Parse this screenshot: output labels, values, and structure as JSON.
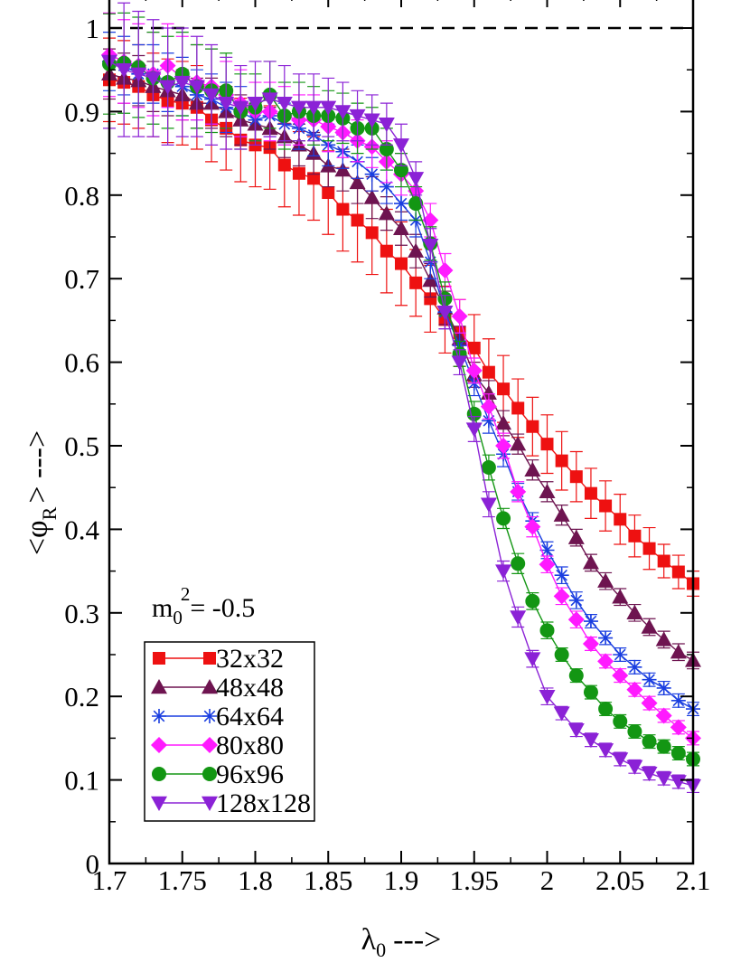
{
  "chart_data": {
    "type": "scatter",
    "xlabel": "λ0 --->",
    "xlabel_main": "λ",
    "xlabel_sub": "0",
    "xlabel_tail": "--->",
    "ylabel": "<φR> --->",
    "ylabel_open": "<φ",
    "ylabel_sub": "R",
    "ylabel_tail": "> --->",
    "xlim": [
      1.7,
      2.1
    ],
    "ylim": [
      0,
      1.0
    ],
    "xticks": [
      1.7,
      1.75,
      1.8,
      1.85,
      1.9,
      1.95,
      2.0,
      2.05,
      2.1
    ],
    "xtick_labels": [
      "1.7",
      "1.75",
      "1.8",
      "1.85",
      "1.9",
      "1.95",
      "2",
      "2.05",
      "2.1"
    ],
    "yticks": [
      0,
      0.1,
      0.2,
      0.3,
      0.4,
      0.5,
      0.6,
      0.7,
      0.8,
      0.9,
      1.0
    ],
    "ytick_labels": [
      "0",
      "0.1",
      "0.2",
      "0.3",
      "0.4",
      "0.5",
      "0.6",
      "0.7",
      "0.8",
      "0.9",
      "1"
    ],
    "reference_line": {
      "y": 1.0,
      "style": "dashed",
      "color": "#000000"
    },
    "annotation": {
      "main": "m",
      "sub": "0",
      "sup": "2",
      "rest": "= -0.5"
    },
    "legend_position": "bottom-left",
    "series": [
      {
        "name": "32x32",
        "color": "#ee1111",
        "marker": "square",
        "x": [
          1.7,
          1.71,
          1.72,
          1.73,
          1.74,
          1.75,
          1.76,
          1.77,
          1.78,
          1.79,
          1.8,
          1.81,
          1.82,
          1.83,
          1.84,
          1.85,
          1.86,
          1.87,
          1.88,
          1.89,
          1.9,
          1.91,
          1.92,
          1.93,
          1.94,
          1.95,
          1.96,
          1.97,
          1.98,
          1.99,
          2.0,
          2.01,
          2.02,
          2.03,
          2.04,
          2.05,
          2.06,
          2.07,
          2.08,
          2.09,
          2.1
        ],
        "y": [
          0.938,
          0.935,
          0.93,
          0.92,
          0.913,
          0.91,
          0.905,
          0.89,
          0.88,
          0.866,
          0.86,
          0.857,
          0.836,
          0.826,
          0.82,
          0.803,
          0.783,
          0.77,
          0.755,
          0.733,
          0.718,
          0.695,
          0.676,
          0.651,
          0.635,
          0.617,
          0.588,
          0.568,
          0.545,
          0.523,
          0.502,
          0.482,
          0.463,
          0.443,
          0.428,
          0.412,
          0.392,
          0.377,
          0.362,
          0.349,
          0.335
        ],
        "err": [
          0.05,
          0.05,
          0.05,
          0.05,
          0.05,
          0.05,
          0.05,
          0.05,
          0.05,
          0.05,
          0.05,
          0.05,
          0.05,
          0.05,
          0.05,
          0.05,
          0.05,
          0.05,
          0.05,
          0.05,
          0.05,
          0.04,
          0.04,
          0.04,
          0.04,
          0.04,
          0.04,
          0.04,
          0.035,
          0.035,
          0.035,
          0.035,
          0.03,
          0.03,
          0.03,
          0.03,
          0.025,
          0.025,
          0.02,
          0.02,
          0.015
        ]
      },
      {
        "name": "48x48",
        "color": "#6e1450",
        "marker": "triangle-up",
        "x": [
          1.7,
          1.71,
          1.72,
          1.73,
          1.74,
          1.75,
          1.76,
          1.77,
          1.78,
          1.79,
          1.8,
          1.81,
          1.82,
          1.83,
          1.84,
          1.85,
          1.86,
          1.87,
          1.88,
          1.89,
          1.9,
          1.91,
          1.92,
          1.93,
          1.94,
          1.95,
          1.96,
          1.97,
          1.98,
          1.99,
          2.0,
          2.01,
          2.02,
          2.03,
          2.04,
          2.05,
          2.06,
          2.07,
          2.08,
          2.09,
          2.1
        ],
        "y": [
          0.945,
          0.94,
          0.937,
          0.93,
          0.925,
          0.92,
          0.91,
          0.91,
          0.9,
          0.89,
          0.885,
          0.88,
          0.87,
          0.86,
          0.85,
          0.835,
          0.83,
          0.815,
          0.797,
          0.778,
          0.76,
          0.733,
          0.698,
          0.665,
          0.628,
          0.585,
          0.563,
          0.527,
          0.502,
          0.471,
          0.445,
          0.417,
          0.39,
          0.36,
          0.338,
          0.319,
          0.3,
          0.283,
          0.268,
          0.253,
          0.243
        ],
        "err": [
          0.03,
          0.03,
          0.03,
          0.03,
          0.03,
          0.03,
          0.03,
          0.03,
          0.03,
          0.03,
          0.025,
          0.025,
          0.025,
          0.025,
          0.025,
          0.025,
          0.025,
          0.025,
          0.025,
          0.02,
          0.02,
          0.02,
          0.02,
          0.02,
          0.015,
          0.015,
          0.015,
          0.015,
          0.012,
          0.012,
          0.012,
          0.012,
          0.01,
          0.01,
          0.01,
          0.01,
          0.01,
          0.01,
          0.01,
          0.01,
          0.01
        ]
      },
      {
        "name": "64x64",
        "color": "#1a3ee0",
        "marker": "asterisk",
        "x": [
          1.7,
          1.71,
          1.72,
          1.73,
          1.74,
          1.75,
          1.76,
          1.77,
          1.78,
          1.79,
          1.8,
          1.81,
          1.82,
          1.83,
          1.84,
          1.85,
          1.86,
          1.87,
          1.88,
          1.89,
          1.9,
          1.91,
          1.92,
          1.93,
          1.94,
          1.95,
          1.96,
          1.97,
          1.98,
          1.99,
          2.0,
          2.01,
          2.02,
          2.03,
          2.04,
          2.05,
          2.06,
          2.07,
          2.08,
          2.09,
          2.1
        ],
        "y": [
          0.96,
          0.955,
          0.945,
          0.945,
          0.935,
          0.93,
          0.92,
          0.915,
          0.905,
          0.9,
          0.89,
          0.895,
          0.885,
          0.88,
          0.872,
          0.86,
          0.852,
          0.84,
          0.825,
          0.81,
          0.79,
          0.77,
          0.72,
          0.66,
          0.62,
          0.575,
          0.53,
          0.49,
          0.445,
          0.41,
          0.375,
          0.345,
          0.315,
          0.29,
          0.27,
          0.25,
          0.235,
          0.22,
          0.21,
          0.195,
          0.185
        ],
        "err": [
          0.035,
          0.035,
          0.035,
          0.035,
          0.035,
          0.035,
          0.03,
          0.03,
          0.03,
          0.03,
          0.025,
          0.025,
          0.025,
          0.025,
          0.025,
          0.025,
          0.02,
          0.02,
          0.02,
          0.02,
          0.02,
          0.02,
          0.02,
          0.02,
          0.015,
          0.015,
          0.015,
          0.015,
          0.01,
          0.01,
          0.01,
          0.01,
          0.01,
          0.008,
          0.008,
          0.008,
          0.008,
          0.008,
          0.008,
          0.008,
          0.008
        ]
      },
      {
        "name": "80x80",
        "color": "#ff1aff",
        "marker": "diamond",
        "x": [
          1.7,
          1.71,
          1.72,
          1.73,
          1.74,
          1.75,
          1.76,
          1.77,
          1.78,
          1.79,
          1.8,
          1.81,
          1.82,
          1.83,
          1.84,
          1.85,
          1.86,
          1.87,
          1.88,
          1.89,
          1.9,
          1.91,
          1.92,
          1.93,
          1.94,
          1.95,
          1.96,
          1.97,
          1.98,
          1.99,
          2.0,
          2.01,
          2.02,
          2.03,
          2.04,
          2.05,
          2.06,
          2.07,
          2.08,
          2.09,
          2.1
        ],
        "y": [
          0.968,
          0.96,
          0.955,
          0.945,
          0.955,
          0.94,
          0.935,
          0.93,
          0.92,
          0.91,
          0.9,
          0.9,
          0.895,
          0.89,
          0.89,
          0.882,
          0.875,
          0.865,
          0.858,
          0.84,
          0.825,
          0.805,
          0.77,
          0.71,
          0.655,
          0.59,
          0.547,
          0.5,
          0.445,
          0.403,
          0.358,
          0.32,
          0.292,
          0.263,
          0.242,
          0.225,
          0.208,
          0.192,
          0.177,
          0.163,
          0.15
        ],
        "err": [
          0.05,
          0.05,
          0.05,
          0.05,
          0.05,
          0.05,
          0.045,
          0.045,
          0.04,
          0.04,
          0.035,
          0.035,
          0.035,
          0.03,
          0.03,
          0.03,
          0.03,
          0.025,
          0.025,
          0.025,
          0.025,
          0.02,
          0.02,
          0.02,
          0.02,
          0.015,
          0.015,
          0.015,
          0.012,
          0.012,
          0.01,
          0.01,
          0.01,
          0.008,
          0.008,
          0.008,
          0.008,
          0.008,
          0.008,
          0.008,
          0.008
        ]
      },
      {
        "name": "96x96",
        "color": "#139613",
        "marker": "circle",
        "x": [
          1.7,
          1.71,
          1.72,
          1.73,
          1.74,
          1.75,
          1.76,
          1.77,
          1.78,
          1.79,
          1.8,
          1.81,
          1.82,
          1.83,
          1.84,
          1.85,
          1.86,
          1.87,
          1.88,
          1.89,
          1.9,
          1.91,
          1.92,
          1.93,
          1.94,
          1.95,
          1.96,
          1.97,
          1.98,
          1.99,
          2.0,
          2.01,
          2.02,
          2.03,
          2.04,
          2.05,
          2.06,
          2.07,
          2.08,
          2.09,
          2.1
        ],
        "y": [
          0.957,
          0.958,
          0.953,
          0.94,
          0.935,
          0.945,
          0.93,
          0.925,
          0.925,
          0.9,
          0.905,
          0.92,
          0.895,
          0.9,
          0.895,
          0.895,
          0.892,
          0.88,
          0.88,
          0.855,
          0.83,
          0.79,
          0.742,
          0.676,
          0.61,
          0.538,
          0.474,
          0.413,
          0.359,
          0.314,
          0.279,
          0.25,
          0.225,
          0.205,
          0.185,
          0.17,
          0.158,
          0.146,
          0.14,
          0.132,
          0.125
        ],
        "err": [
          0.06,
          0.06,
          0.06,
          0.055,
          0.055,
          0.05,
          0.05,
          0.05,
          0.045,
          0.045,
          0.04,
          0.04,
          0.04,
          0.035,
          0.035,
          0.03,
          0.03,
          0.03,
          0.025,
          0.025,
          0.02,
          0.02,
          0.02,
          0.02,
          0.015,
          0.015,
          0.015,
          0.012,
          0.012,
          0.01,
          0.01,
          0.008,
          0.008,
          0.008,
          0.008,
          0.008,
          0.008,
          0.008,
          0.008,
          0.008,
          0.008
        ]
      },
      {
        "name": "128x128",
        "color": "#8b22d6",
        "marker": "triangle-down",
        "x": [
          1.7,
          1.71,
          1.72,
          1.73,
          1.74,
          1.75,
          1.76,
          1.77,
          1.78,
          1.79,
          1.8,
          1.81,
          1.82,
          1.83,
          1.84,
          1.85,
          1.86,
          1.87,
          1.88,
          1.89,
          1.9,
          1.91,
          1.92,
          1.93,
          1.94,
          1.95,
          1.96,
          1.97,
          1.98,
          1.99,
          2.0,
          2.01,
          2.02,
          2.03,
          2.04,
          2.05,
          2.06,
          2.07,
          2.08,
          2.09,
          2.1
        ],
        "y": [
          0.96,
          0.95,
          0.945,
          0.94,
          0.93,
          0.935,
          0.93,
          0.92,
          0.91,
          0.905,
          0.91,
          0.915,
          0.91,
          0.905,
          0.905,
          0.905,
          0.9,
          0.895,
          0.89,
          0.885,
          0.86,
          0.82,
          0.74,
          0.66,
          0.6,
          0.52,
          0.43,
          0.35,
          0.295,
          0.245,
          0.2,
          0.18,
          0.16,
          0.148,
          0.136,
          0.125,
          0.116,
          0.108,
          0.102,
          0.098,
          0.093
        ],
        "err": [
          0.08,
          0.08,
          0.075,
          0.07,
          0.07,
          0.065,
          0.06,
          0.06,
          0.055,
          0.05,
          0.05,
          0.045,
          0.045,
          0.04,
          0.04,
          0.035,
          0.035,
          0.03,
          0.03,
          0.025,
          0.025,
          0.02,
          0.02,
          0.02,
          0.015,
          0.015,
          0.015,
          0.012,
          0.012,
          0.01,
          0.01,
          0.008,
          0.008,
          0.008,
          0.008,
          0.008,
          0.008,
          0.008,
          0.008,
          0.008,
          0.008
        ]
      }
    ]
  }
}
